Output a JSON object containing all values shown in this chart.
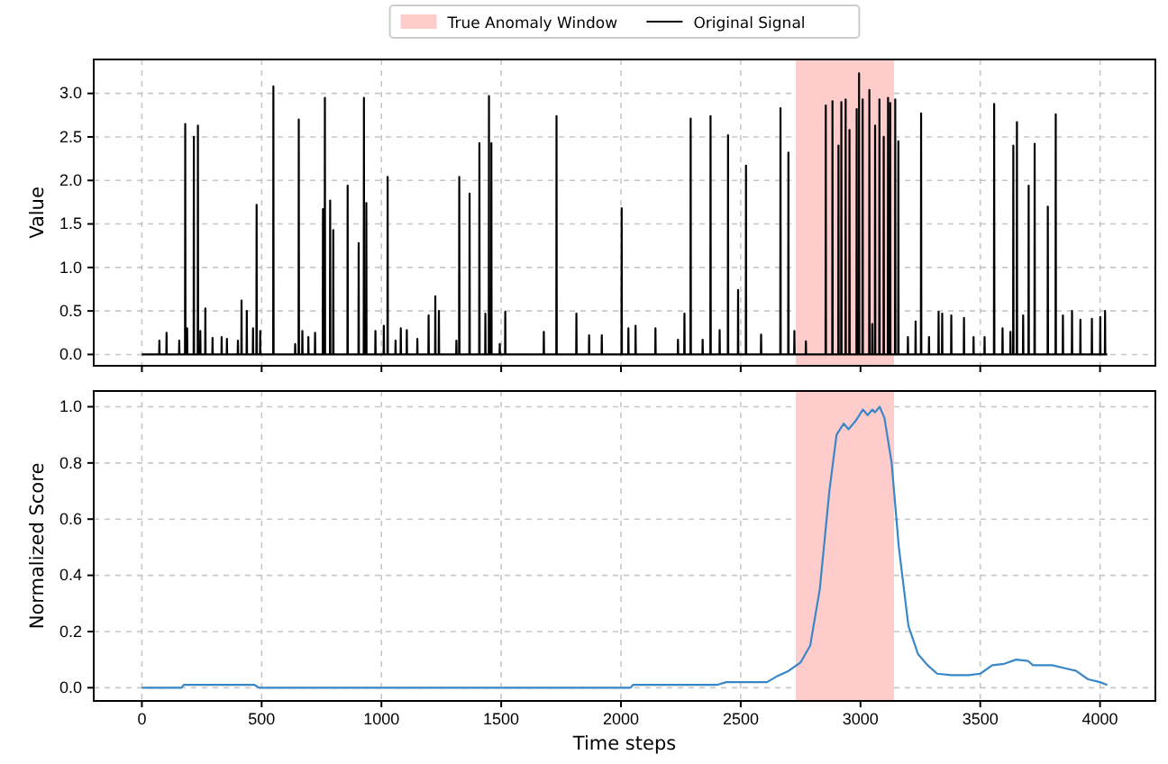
{
  "chart_data": [
    {
      "type": "line",
      "ylabel": "Value",
      "xlim": [
        -201,
        4231
      ],
      "ylim": [
        -0.13,
        3.39
      ],
      "xticks": [
        0,
        500,
        1000,
        1500,
        2000,
        2500,
        3000,
        3500,
        4000
      ],
      "yticks": [
        {
          "value": 0,
          "label": "0.0"
        },
        {
          "value": 0.5,
          "label": "0.5"
        },
        {
          "value": 1,
          "label": "1.0"
        },
        {
          "value": 1.5,
          "label": "1.5"
        },
        {
          "value": 2,
          "label": "2.0"
        },
        {
          "value": 2.5,
          "label": "2.5"
        },
        {
          "value": 3,
          "label": "3.0"
        }
      ],
      "tick_labels": "y",
      "grid": true,
      "legend": "top",
      "line_style": "solid",
      "marker": "none",
      "bands": [
        {
          "axis": "x",
          "from": 2730,
          "to": 3140,
          "label": "True Anomaly Window",
          "color": "#ffcccc"
        }
      ],
      "series": [
        {
          "name": "Original Signal",
          "color": "#000000",
          "x": [
            0,
            72,
            73,
            74,
            102,
            103,
            104,
            155,
            156,
            157,
            180,
            181,
            182,
            188,
            189,
            190,
            216,
            217,
            218,
            233,
            234,
            235,
            243,
            244,
            245,
            264,
            265,
            266,
            294,
            295,
            296,
            332,
            333,
            334,
            354,
            355,
            356,
            400,
            401,
            402,
            415,
            416,
            417,
            437,
            438,
            439,
            463,
            464,
            465,
            478,
            479,
            480,
            493,
            494,
            495,
            548,
            549,
            550,
            639,
            640,
            641,
            654,
            655,
            656,
            669,
            670,
            671,
            694,
            695,
            696,
            722,
            723,
            724,
            755,
            756,
            757,
            763,
            764,
            765,
            785,
            786,
            787,
            798,
            799,
            800,
            858,
            859,
            860,
            904,
            905,
            906,
            926,
            927,
            928,
            936,
            937,
            938,
            974,
            975,
            976,
            1009,
            1010,
            1011,
            1025,
            1026,
            1027,
            1058,
            1059,
            1060,
            1080,
            1081,
            1082,
            1105,
            1106,
            1107,
            1149,
            1150,
            1151,
            1196,
            1197,
            1198,
            1224,
            1225,
            1226,
            1239,
            1240,
            1241,
            1312,
            1313,
            1314,
            1324,
            1325,
            1326,
            1367,
            1368,
            1369,
            1408,
            1409,
            1410,
            1433,
            1434,
            1435,
            1448,
            1449,
            1450,
            1458,
            1459,
            1460,
            1493,
            1494,
            1495,
            1516,
            1517,
            1518,
            1677,
            1678,
            1679,
            1730,
            1731,
            1732,
            1813,
            1814,
            1815,
            1866,
            1867,
            1868,
            1919,
            1920,
            1921,
            2002,
            2003,
            2004,
            2030,
            2031,
            2032,
            2060,
            2061,
            2062,
            2143,
            2144,
            2145,
            2237,
            2238,
            2239,
            2264,
            2265,
            2266,
            2290,
            2291,
            2292,
            2340,
            2341,
            2342,
            2373,
            2374,
            2375,
            2411,
            2412,
            2413,
            2446,
            2447,
            2448,
            2488,
            2489,
            2490,
            2521,
            2522,
            2523,
            2584,
            2585,
            2586,
            2665,
            2666,
            2667,
            2698,
            2699,
            2700,
            2723,
            2724,
            2725,
            2771,
            2772,
            2773,
            2854,
            2855,
            2856,
            2882,
            2883,
            2884,
            2907,
            2908,
            2909,
            2919,
            2920,
            2921,
            2937,
            2938,
            2939,
            2953,
            2954,
            2955,
            2983,
            2984,
            2985,
            2993,
            2994,
            2995,
            3008,
            3009,
            3010,
            3036,
            3037,
            3038,
            3048,
            3049,
            3050,
            3060,
            3061,
            3062,
            3078,
            3079,
            3080,
            3096,
            3097,
            3098,
            3114,
            3115,
            3116,
            3123,
            3124,
            3125,
            3144,
            3145,
            3146,
            3157,
            3158,
            3159,
            3197,
            3198,
            3199,
            3229,
            3230,
            3231,
            3252,
            3253,
            3254,
            3285,
            3286,
            3287,
            3325,
            3326,
            3327,
            3340,
            3341,
            3342,
            3378,
            3379,
            3380,
            3431,
            3432,
            3433,
            3471,
            3472,
            3473,
            3517,
            3518,
            3519,
            3557,
            3558,
            3559,
            3592,
            3593,
            3594,
            3625,
            3626,
            3627,
            3637,
            3638,
            3639,
            3652,
            3653,
            3654,
            3678,
            3679,
            3680,
            3701,
            3702,
            3703,
            3726,
            3727,
            3728,
            3781,
            3782,
            3783,
            3814,
            3815,
            3816,
            3844,
            3845,
            3846,
            3882,
            3883,
            3884,
            3917,
            3918,
            3919,
            3965,
            3966,
            3967,
            4000,
            4001,
            4002,
            4020,
            4021,
            4022,
            4030
          ],
          "values": [
            0,
            0,
            0.16,
            0,
            0,
            0.25,
            0,
            0,
            0.16,
            0,
            0,
            2.65,
            0,
            0,
            0.3,
            0,
            0,
            2.5,
            0,
            0,
            2.63,
            0,
            0,
            0.27,
            0,
            0,
            0.53,
            0,
            0,
            0.19,
            0,
            0,
            0.2,
            0,
            0,
            0.18,
            0,
            0,
            0.16,
            0,
            0,
            0.62,
            0,
            0,
            0.5,
            0,
            0,
            0.3,
            0,
            0,
            1.72,
            0,
            0,
            0.27,
            0,
            0,
            3.08,
            0,
            0,
            0.12,
            0,
            0,
            2.7,
            0,
            0,
            0.27,
            0,
            0,
            0.2,
            0,
            0,
            0.25,
            0,
            0,
            1.67,
            0,
            0,
            2.95,
            0,
            0,
            1.77,
            0,
            0,
            1.43,
            0,
            0,
            1.94,
            0,
            0,
            1.28,
            0,
            0,
            2.95,
            0,
            0,
            1.74,
            0,
            0,
            0.27,
            0,
            0,
            0.33,
            0,
            0,
            2.04,
            0,
            0,
            0.16,
            0,
            0,
            0.3,
            0,
            0,
            0.28,
            0,
            0,
            0.18,
            0,
            0,
            0.45,
            0,
            0,
            0.67,
            0,
            0,
            0.5,
            0,
            0,
            0.16,
            0,
            0,
            2.04,
            0,
            0,
            1.85,
            0,
            0,
            2.43,
            0,
            0,
            0.47,
            0,
            0,
            2.97,
            0,
            0,
            2.43,
            0,
            0,
            0.12,
            0,
            0,
            0.49,
            0,
            0,
            0.26,
            0,
            0,
            2.74,
            0,
            0,
            0.47,
            0,
            0,
            0.22,
            0,
            0,
            0.22,
            0,
            0,
            1.68,
            0,
            0,
            0.3,
            0,
            0,
            0.33,
            0,
            0,
            0.3,
            0,
            0,
            0.17,
            0,
            0,
            0.47,
            0,
            0,
            2.71,
            0,
            0,
            0.17,
            0,
            0,
            2.74,
            0,
            0,
            0.28,
            0,
            0,
            2.52,
            0,
            0,
            0.74,
            0,
            0,
            2.17,
            0,
            0,
            0.23,
            0,
            0,
            2.83,
            0,
            0,
            2.32,
            0,
            0,
            0.27,
            0,
            0,
            0.15,
            0,
            0,
            2.86,
            0,
            0,
            2.91,
            0,
            0,
            2.4,
            0,
            0,
            2.9,
            0,
            0,
            2.93,
            0,
            0,
            2.58,
            0,
            0,
            2.82,
            0,
            0,
            3.23,
            0,
            0,
            2.93,
            0,
            0,
            3.04,
            0,
            0,
            0.35,
            0,
            0,
            2.63,
            0,
            0,
            2.93,
            0,
            0,
            2.5,
            0,
            0,
            2.95,
            0,
            0,
            2.89,
            0,
            0,
            2.93,
            0,
            0,
            2.45,
            0,
            0,
            0.2,
            0,
            0,
            0.38,
            0,
            0,
            2.77,
            0,
            0,
            0.2,
            0,
            0,
            0.49,
            0,
            0,
            0.47,
            0,
            0,
            0.45,
            0,
            0,
            0.42,
            0,
            0,
            0.2,
            0,
            0,
            0.2,
            0,
            0,
            2.88,
            0,
            0,
            0.3,
            0,
            0,
            0.26,
            0,
            0,
            2.4,
            0,
            0,
            2.67,
            0,
            0,
            0.45,
            0,
            0,
            1.94,
            0,
            0,
            2.42,
            0,
            0,
            1.7,
            0,
            0,
            2.76,
            0,
            0,
            0.45,
            0,
            0,
            0.5,
            0,
            0,
            0.4,
            0,
            0,
            0.41,
            0,
            0,
            0.43,
            0,
            0,
            0.5,
            0,
            0
          ]
        }
      ]
    },
    {
      "type": "line",
      "xlabel": "Time steps",
      "ylabel": "Normalized Score",
      "xlim": [
        -201,
        4231
      ],
      "ylim": [
        -0.047,
        1.056
      ],
      "xticks": [
        0,
        500,
        1000,
        1500,
        2000,
        2500,
        3000,
        3500,
        4000
      ],
      "yticks": [
        {
          "value": 0,
          "label": "0.0"
        },
        {
          "value": 0.2,
          "label": "0.2"
        },
        {
          "value": 0.4,
          "label": "0.4"
        },
        {
          "value": 0.6,
          "label": "0.6"
        },
        {
          "value": 0.8,
          "label": "0.8"
        },
        {
          "value": 1,
          "label": "1.0"
        }
      ],
      "grid": true,
      "line_style": "solid",
      "marker": "none",
      "bands": [
        {
          "axis": "x",
          "from": 2730,
          "to": 3140,
          "color": "#ffcccc"
        }
      ],
      "series": [
        {
          "color": "#3a87c8",
          "x": [
            0,
            165,
            175,
            470,
            490,
            2040,
            2050,
            2400,
            2440,
            2610,
            2650,
            2700,
            2750,
            2790,
            2830,
            2870,
            2900,
            2930,
            2950,
            2980,
            3010,
            3030,
            3050,
            3060,
            3080,
            3100,
            3130,
            3160,
            3200,
            3240,
            3280,
            3320,
            3380,
            3450,
            3500,
            3550,
            3600,
            3650,
            3700,
            3720,
            3800,
            3850,
            3900,
            3950,
            4000,
            4030
          ],
          "values": [
            0,
            0,
            0.01,
            0.01,
            0,
            0,
            0.01,
            0.01,
            0.02,
            0.02,
            0.04,
            0.06,
            0.09,
            0.15,
            0.35,
            0.7,
            0.9,
            0.94,
            0.92,
            0.95,
            0.99,
            0.97,
            0.99,
            0.98,
            1.0,
            0.96,
            0.8,
            0.5,
            0.22,
            0.12,
            0.08,
            0.05,
            0.045,
            0.045,
            0.05,
            0.08,
            0.085,
            0.1,
            0.095,
            0.08,
            0.08,
            0.07,
            0.06,
            0.03,
            0.02,
            0.01
          ]
        }
      ]
    }
  ]
}
